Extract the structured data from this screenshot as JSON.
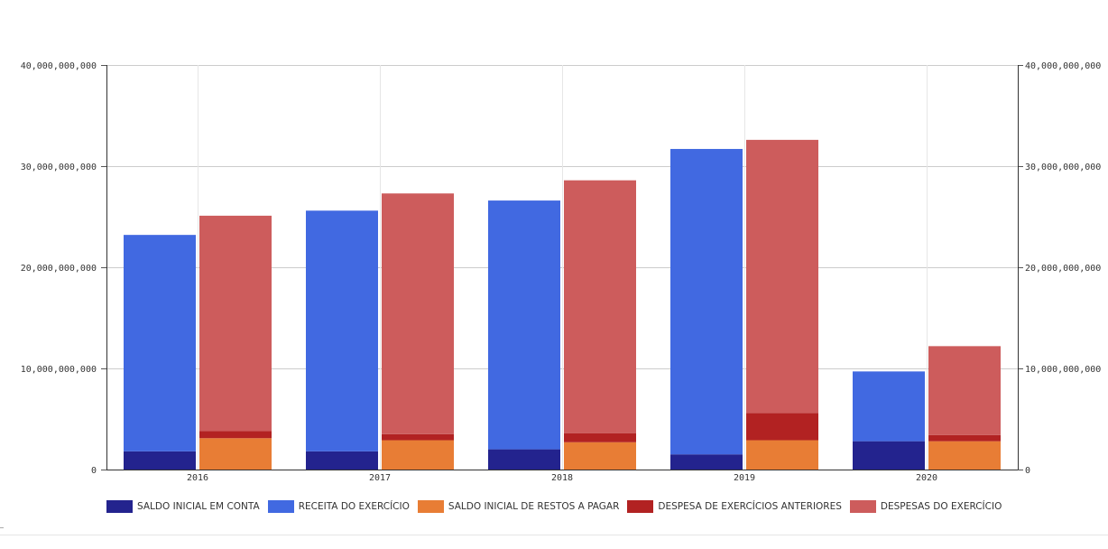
{
  "chart_data": {
    "type": "bar",
    "categories": [
      "2016",
      "2017",
      "2018",
      "2019",
      "2020"
    ],
    "ylim": [
      0,
      40000000000
    ],
    "yticks": [
      {
        "value": 0,
        "label": "0"
      },
      {
        "value": 10000000000,
        "label": "10,000,000,000"
      },
      {
        "value": 20000000000,
        "label": "20,000,000,000"
      },
      {
        "value": 30000000000,
        "label": "30,000,000,000"
      },
      {
        "value": 40000000000,
        "label": "40,000,000,000"
      }
    ],
    "grid": true,
    "legend_position": "bottom",
    "stacks": [
      {
        "id": "receita",
        "series": [
          "saldo_inicial_em_conta",
          "receita_do_exercicio"
        ]
      },
      {
        "id": "despesa",
        "series": [
          "saldo_inicial_restos_a_pagar",
          "despesa_exercicios_anteriores",
          "despesas_do_exercicio"
        ]
      }
    ],
    "series": [
      {
        "id": "saldo_inicial_em_conta",
        "name": "SALDO INICIAL EM CONTA",
        "color": "#23238e",
        "values": [
          1800000000,
          1800000000,
          2000000000,
          1500000000,
          2800000000
        ]
      },
      {
        "id": "receita_do_exercicio",
        "name": "RECEITA DO EXERCÍCIO",
        "color": "#4169e1",
        "values": [
          21400000000,
          23800000000,
          24600000000,
          30200000000,
          6900000000
        ]
      },
      {
        "id": "saldo_inicial_restos_a_pagar",
        "name": "SALDO INICIAL DE RESTOS A PAGAR",
        "color": "#e87d35",
        "values": [
          3100000000,
          2900000000,
          2700000000,
          2900000000,
          2800000000
        ]
      },
      {
        "id": "despesa_exercicios_anteriores",
        "name": "DESPESA DE EXERCÍCIOS ANTERIORES",
        "color": "#b22222",
        "values": [
          700000000,
          600000000,
          900000000,
          2700000000,
          600000000
        ]
      },
      {
        "id": "despesas_do_exercicio",
        "name": "DESPESAS DO EXERCÍCIO",
        "color": "#cd5c5c",
        "values": [
          21300000000,
          23800000000,
          25000000000,
          27000000000,
          8800000000
        ]
      }
    ]
  }
}
